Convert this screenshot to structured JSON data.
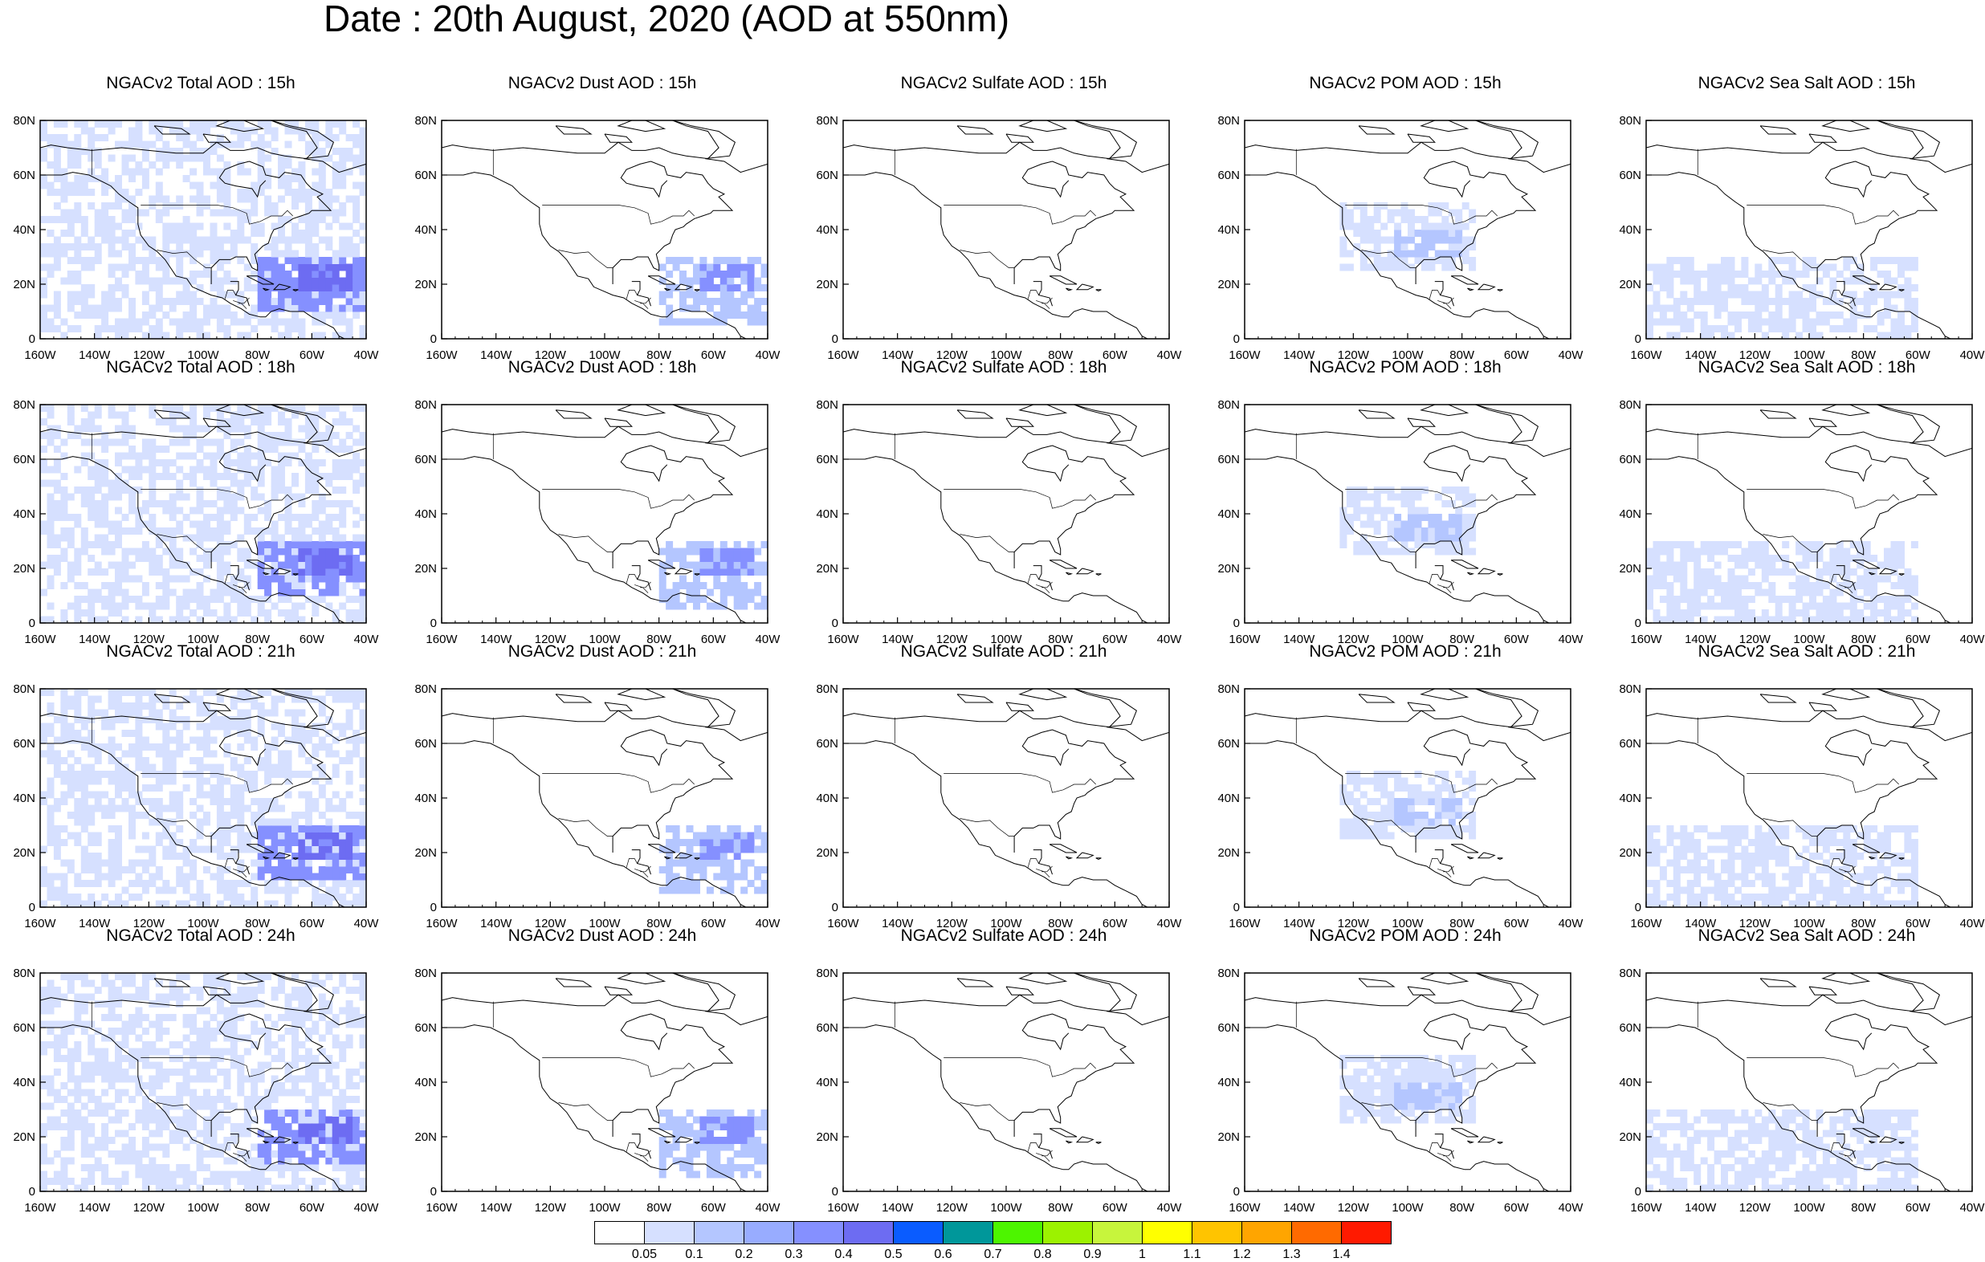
{
  "title": "Date : 20th August, 2020 (AOD at 550nm)",
  "columns": [
    "Total",
    "Dust",
    "Sulfate",
    "POM",
    "Sea Salt"
  ],
  "rows": [
    "15h",
    "18h",
    "21h",
    "24h"
  ],
  "panel_titles": [
    [
      "NGACv2 Total AOD : 15h",
      "NGACv2 Dust AOD : 15h",
      "NGACv2 Sulfate AOD : 15h",
      "NGACv2 POM AOD : 15h",
      "NGACv2 Sea Salt AOD : 15h"
    ],
    [
      "NGACv2 Total AOD : 18h",
      "NGACv2 Dust AOD : 18h",
      "NGACv2 Sulfate AOD : 18h",
      "NGACv2 POM AOD : 18h",
      "NGACv2 Sea Salt AOD : 18h"
    ],
    [
      "NGACv2 Total AOD : 21h",
      "NGACv2 Dust AOD : 21h",
      "NGACv2 Sulfate AOD : 21h",
      "NGACv2 POM AOD : 21h",
      "NGACv2 Sea Salt AOD : 21h"
    ],
    [
      "NGACv2 Total AOD : 24h",
      "NGACv2 Dust AOD : 24h",
      "NGACv2 Sulfate AOD : 24h",
      "NGACv2 POM AOD : 24h",
      "NGACv2 Sea Salt  AOD : 24h"
    ]
  ],
  "map": {
    "lon_range": [
      -160,
      -40
    ],
    "lat_range": [
      0,
      80
    ],
    "x_ticks": [
      "160W",
      "140W",
      "120W",
      "100W",
      "80W",
      "60W",
      "40W"
    ],
    "y_ticks": [
      "0",
      "20N",
      "40N",
      "60N",
      "80N"
    ],
    "coastline_color": "#000000"
  },
  "colorbar": {
    "labels": [
      "0.05",
      "0.1",
      "0.2",
      "0.3",
      "0.4",
      "0.5",
      "0.6",
      "0.7",
      "0.8",
      "0.9",
      "1",
      "1.1",
      "1.2",
      "1.3",
      "1.4"
    ],
    "colors": [
      "#ffffff",
      "#d6e0ff",
      "#b4c6ff",
      "#98acff",
      "#8590ff",
      "#6d6cf2",
      "#0a5cff",
      "#00979a",
      "#4df500",
      "#9cf200",
      "#c7f53c",
      "#ffff00",
      "#ffc400",
      "#ffa500",
      "#ff6a00",
      "#ff1a00"
    ]
  },
  "aod_fields": {
    "Total": [
      {
        "lon": [
          -160,
          -40
        ],
        "lat": [
          0,
          80
        ],
        "level": 1,
        "note": "broad background"
      },
      {
        "lon": [
          -80,
          -40
        ],
        "lat": [
          10,
          30
        ],
        "level": 4
      },
      {
        "lon": [
          -65,
          -45
        ],
        "lat": [
          16,
          26
        ],
        "level": 5
      }
    ],
    "Dust": [
      {
        "lon": [
          -80,
          -40
        ],
        "lat": [
          5,
          30
        ],
        "level": 2
      },
      {
        "lon": [
          -65,
          -45
        ],
        "lat": [
          16,
          26
        ],
        "level": 4
      }
    ],
    "POM": [
      {
        "lon": [
          -125,
          -75
        ],
        "lat": [
          25,
          50
        ],
        "level": 1
      },
      {
        "lon": [
          -105,
          -80
        ],
        "lat": [
          30,
          40
        ],
        "level": 2
      }
    ],
    "Sea Salt": [
      {
        "lon": [
          -160,
          -60
        ],
        "lat": [
          0,
          30
        ],
        "level": 1
      }
    ]
  }
}
